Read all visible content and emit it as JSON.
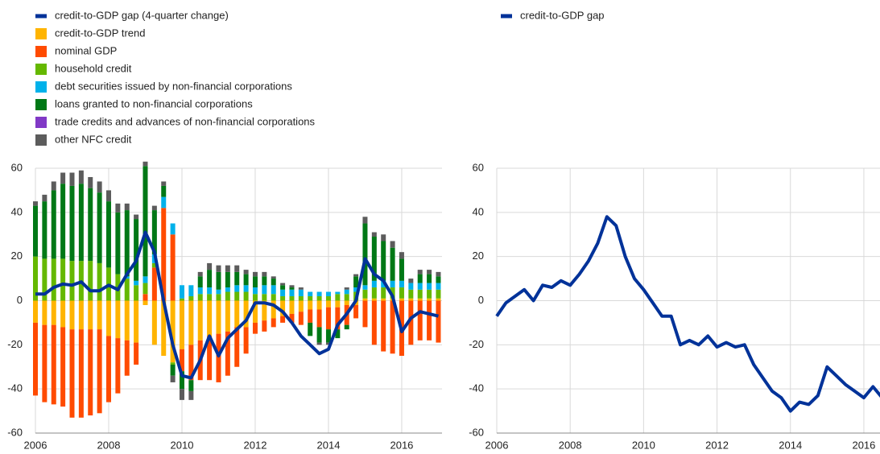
{
  "chart_data": [
    {
      "type": "bar",
      "stacked": true,
      "grid": true,
      "x": [
        2006,
        2006.25,
        2006.5,
        2006.75,
        2007,
        2007.25,
        2007.5,
        2007.75,
        2008,
        2008.25,
        2008.5,
        2008.75,
        2009,
        2009.25,
        2009.5,
        2009.75,
        2010,
        2010.25,
        2010.5,
        2010.75,
        2011,
        2011.25,
        2011.5,
        2011.75,
        2012,
        2012.25,
        2012.5,
        2012.75,
        2013,
        2013.25,
        2013.5,
        2013.75,
        2014,
        2014.25,
        2014.5,
        2014.75,
        2015,
        2015.25,
        2015.5,
        2015.75,
        2016,
        2016.25,
        2016.5,
        2016.75,
        2017
      ],
      "xlim": [
        2006,
        2017.1
      ],
      "xticks": [
        2006,
        2008,
        2010,
        2012,
        2014,
        2016
      ],
      "ylim": [
        -60,
        60
      ],
      "yticks": [
        -60,
        -40,
        -20,
        0,
        20,
        40,
        60
      ],
      "series": [
        {
          "name": "credit-to-GDP gap (4-quarter change)",
          "type": "line",
          "color": "#003299",
          "values": [
            3,
            3,
            6,
            7.5,
            7,
            8.5,
            4.5,
            4.5,
            7,
            5,
            12,
            18,
            31,
            22,
            0,
            -20,
            -34,
            -35,
            -27,
            -16,
            -25,
            -17,
            -13,
            -9,
            -1,
            -1,
            -2,
            -5,
            -10,
            -16,
            -20,
            -24,
            -22,
            -11,
            -6,
            0,
            19,
            12,
            9,
            2,
            -14,
            -8,
            -5,
            -6,
            -7
          ]
        },
        {
          "name": "credit-to-GDP trend",
          "color": "#ffb400",
          "values": [
            -10,
            -11,
            -11,
            -12,
            -13,
            -13,
            -13,
            -13,
            -16,
            -17,
            -18,
            -19,
            -2,
            -20,
            -25,
            -28,
            -22,
            -20,
            -18,
            -16,
            -15,
            -14,
            -12,
            -12,
            -10,
            -9,
            -8,
            -7,
            -6,
            -5,
            -4,
            -4,
            -3,
            -3,
            -2,
            -2,
            1,
            1,
            1,
            1,
            1,
            1,
            1,
            1,
            1
          ]
        },
        {
          "name": "nominal GDP",
          "color": "#ff4b00",
          "values": [
            -33,
            -35,
            -36,
            -36,
            -40,
            -40,
            -39,
            -38,
            -30,
            -25,
            -16,
            -10,
            3,
            15,
            42,
            30,
            -10,
            -16,
            -18,
            -20,
            -22,
            -20,
            -18,
            -12,
            -5,
            -5,
            -4,
            -3,
            -4,
            -6,
            -6,
            -8,
            -10,
            -10,
            -9,
            -6,
            -12,
            -20,
            -23,
            -24,
            -25,
            -20,
            -18,
            -18,
            -19
          ]
        },
        {
          "name": "household credit",
          "color": "#65b800",
          "values": [
            20,
            19,
            19,
            19,
            18,
            18,
            18,
            17,
            15,
            12,
            10,
            7,
            5,
            2,
            0,
            -1,
            1,
            2,
            3,
            3,
            3,
            4,
            4,
            4,
            3,
            3,
            3,
            2,
            2,
            2,
            2,
            2,
            2,
            3,
            3,
            4,
            4,
            5,
            5,
            5,
            5,
            4,
            4,
            4,
            4
          ]
        },
        {
          "name": "debt securities issued by non-financial corporations",
          "color": "#00b1ea",
          "values": [
            0,
            0,
            0,
            0,
            0,
            0,
            0,
            0,
            0,
            0,
            1,
            2,
            3,
            4,
            5,
            5,
            6,
            5,
            3,
            3,
            2,
            2,
            3,
            3,
            3,
            4,
            4,
            3,
            3,
            3,
            2,
            2,
            2,
            1,
            2,
            2,
            2,
            3,
            3,
            3,
            3,
            3,
            3,
            3,
            3
          ]
        },
        {
          "name": "loans granted to non-financial corporations",
          "color": "#007816",
          "values": [
            23,
            26,
            31,
            34,
            34,
            35,
            33,
            32,
            30,
            28,
            30,
            28,
            50,
            20,
            5,
            -5,
            -8,
            -5,
            5,
            8,
            8,
            7,
            6,
            5,
            5,
            4,
            3,
            2,
            1,
            0,
            -6,
            -7,
            -6,
            -4,
            -2,
            5,
            28,
            20,
            18,
            15,
            10,
            0,
            4,
            4,
            3
          ]
        },
        {
          "name": "trade credits and advances of non-financial corporations",
          "color": "#8139c6",
          "values": [
            0,
            0,
            0,
            0,
            0,
            0,
            0,
            0,
            0,
            0,
            0,
            0,
            0,
            0,
            0,
            0,
            0,
            0,
            0,
            0,
            0,
            0,
            0,
            0,
            0,
            0,
            0,
            0,
            0,
            0,
            0,
            0,
            0,
            0,
            0,
            0,
            0,
            0,
            0,
            0,
            0,
            0,
            0,
            0,
            0
          ]
        },
        {
          "name": "other NFC credit",
          "color": "#5c5c5c",
          "values": [
            2,
            3,
            4,
            5,
            6,
            6,
            5,
            5,
            5,
            4,
            3,
            2,
            2,
            2,
            2,
            -3,
            -5,
            -4,
            2,
            3,
            3,
            3,
            3,
            2,
            2,
            2,
            1,
            1,
            1,
            1,
            0,
            -1,
            -1,
            0,
            1,
            1,
            3,
            2,
            3,
            3,
            3,
            2,
            2,
            2,
            2
          ]
        }
      ]
    },
    {
      "type": "line",
      "grid": true,
      "x": [
        2006,
        2006.25,
        2006.5,
        2006.75,
        2007,
        2007.25,
        2007.5,
        2007.75,
        2008,
        2008.25,
        2008.5,
        2008.75,
        2009,
        2009.25,
        2009.5,
        2009.75,
        2010,
        2010.25,
        2010.5,
        2010.75,
        2011,
        2011.25,
        2011.5,
        2011.75,
        2012,
        2012.25,
        2012.5,
        2012.75,
        2013,
        2013.25,
        2013.5,
        2013.75,
        2014,
        2014.25,
        2014.5,
        2014.75,
        2015,
        2015.25,
        2015.5,
        2015.75,
        2016,
        2016.25,
        2016.5
      ],
      "xlim": [
        2006,
        2016.44
      ],
      "xticks": [
        2006,
        2008,
        2010,
        2012,
        2014,
        2016
      ],
      "ylim": [
        -60,
        60
      ],
      "yticks": [
        -60,
        -40,
        -20,
        0,
        20,
        40,
        60
      ],
      "series": [
        {
          "name": "credit-to-GDP gap",
          "color": "#003299",
          "values": [
            -7,
            -1,
            2,
            5,
            0,
            7,
            6,
            9,
            7,
            12,
            18,
            26,
            38,
            34,
            20,
            10,
            5,
            -1,
            -7,
            -7,
            -20,
            -18,
            -20,
            -16,
            -21,
            -19,
            -21,
            -20,
            -29,
            -35,
            -41,
            -44,
            -50,
            -46,
            -47,
            -43,
            -30,
            -34,
            -38,
            -41,
            -44,
            -39,
            -44
          ]
        }
      ]
    }
  ]
}
